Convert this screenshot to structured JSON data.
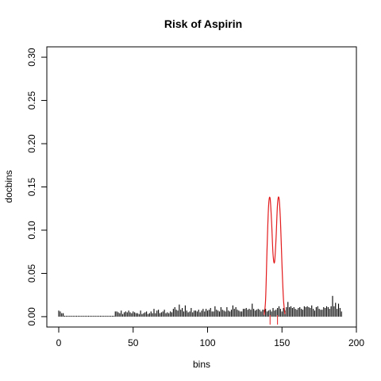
{
  "chart_data": {
    "type": "bar",
    "title": "Risk of Aspirin",
    "xlabel": "bins",
    "ylabel": "docbins",
    "xlim": [
      -8,
      200
    ],
    "ylim": [
      -0.012,
      0.312
    ],
    "x_ticks": [
      0,
      50,
      100,
      150,
      200
    ],
    "x_tick_labels": [
      "0",
      "50",
      "100",
      "150",
      "200"
    ],
    "y_ticks": [
      0.0,
      0.05,
      0.1,
      0.15,
      0.2,
      0.25,
      0.3
    ],
    "y_tick_labels": [
      "0.00",
      "0.05",
      "0.10",
      "0.15",
      "0.20",
      "0.25",
      "0.30"
    ],
    "grid": false,
    "series": [
      {
        "type": "bar",
        "color": "#000000",
        "x_start": 0,
        "values": [
          0.007,
          0.006,
          0.004,
          0.004,
          0.001,
          0.001,
          0.001,
          0.001,
          0.001,
          0.001,
          0.001,
          0.001,
          0.001,
          0.001,
          0.001,
          0.001,
          0.001,
          0.001,
          0.001,
          0.001,
          0.001,
          0.001,
          0.001,
          0.001,
          0.001,
          0.001,
          0.001,
          0.001,
          0.001,
          0.001,
          0.001,
          0.001,
          0.001,
          0.001,
          0.001,
          0.001,
          0.001,
          0.001,
          0.006,
          0.006,
          0.005,
          0.004,
          0.007,
          0.003,
          0.005,
          0.006,
          0.005,
          0.007,
          0.005,
          0.004,
          0.006,
          0.005,
          0.004,
          0.004,
          0.003,
          0.007,
          0.003,
          0.004,
          0.005,
          0.006,
          0.003,
          0.004,
          0.006,
          0.004,
          0.009,
          0.004,
          0.007,
          0.008,
          0.004,
          0.005,
          0.006,
          0.008,
          0.004,
          0.005,
          0.004,
          0.006,
          0.005,
          0.009,
          0.011,
          0.008,
          0.007,
          0.014,
          0.008,
          0.01,
          0.006,
          0.013,
          0.007,
          0.005,
          0.006,
          0.01,
          0.005,
          0.007,
          0.007,
          0.006,
          0.008,
          0.005,
          0.007,
          0.009,
          0.006,
          0.009,
          0.007,
          0.008,
          0.01,
          0.006,
          0.006,
          0.012,
          0.008,
          0.007,
          0.006,
          0.011,
          0.008,
          0.007,
          0.006,
          0.011,
          0.007,
          0.006,
          0.008,
          0.013,
          0.009,
          0.011,
          0.008,
          0.007,
          0.006,
          0.006,
          0.009,
          0.009,
          0.01,
          0.008,
          0.009,
          0.008,
          0.015,
          0.009,
          0.007,
          0.008,
          0.009,
          0.008,
          0.006,
          0.008,
          0.008,
          0.009,
          0.006,
          0.007,
          0.008,
          0.006,
          0.01,
          0.007,
          0.008,
          0.01,
          0.012,
          0.009,
          0.006,
          0.01,
          0.007,
          0.011,
          0.017,
          0.011,
          0.012,
          0.01,
          0.011,
          0.009,
          0.008,
          0.01,
          0.011,
          0.009,
          0.008,
          0.012,
          0.011,
          0.012,
          0.011,
          0.01,
          0.013,
          0.009,
          0.007,
          0.011,
          0.012,
          0.009,
          0.008,
          0.008,
          0.011,
          0.01,
          0.012,
          0.011,
          0.009,
          0.012,
          0.024,
          0.012,
          0.016,
          0.009,
          0.015,
          0.01,
          0.006
        ]
      },
      {
        "type": "line",
        "color": "#e31a1c",
        "x": [
          138,
          139,
          140,
          141,
          142,
          143,
          144,
          145,
          146,
          147,
          148,
          149,
          150,
          151,
          152
        ],
        "y": [
          0.002,
          0.02,
          0.08,
          0.128,
          0.137,
          0.11,
          0.072,
          0.063,
          0.09,
          0.13,
          0.137,
          0.11,
          0.06,
          0.02,
          0.003
        ]
      }
    ],
    "vlines": [
      {
        "x": 142,
        "color": "#e31a1c"
      },
      {
        "x": 147,
        "color": "#e31a1c"
      }
    ]
  }
}
